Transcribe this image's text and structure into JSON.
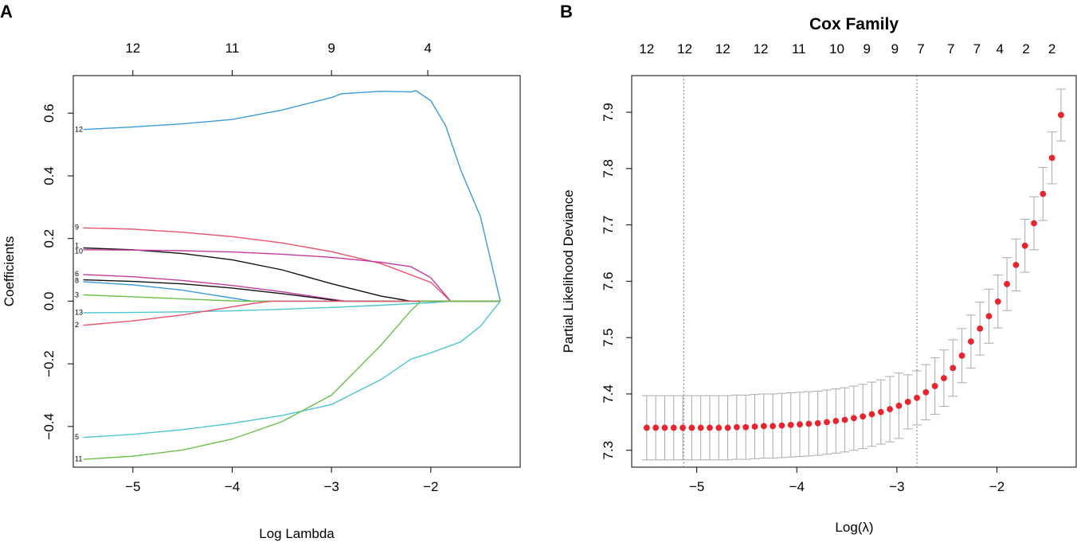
{
  "panels": {
    "a": {
      "letter": "A"
    },
    "b": {
      "letter": "B"
    }
  },
  "chart_data": [
    {
      "type": "line",
      "panel": "A",
      "title": "",
      "xlabel": "Log Lambda",
      "ylabel": "Coefficients",
      "xlim": [
        -5.6,
        -1.1
      ],
      "ylim": [
        -0.53,
        0.72
      ],
      "x_ticks": [
        -5,
        -4,
        -3,
        -2
      ],
      "y_ticks": [
        -0.4,
        -0.2,
        0.0,
        0.2,
        0.4,
        0.6
      ],
      "x_tick_labels": [
        "−5",
        "−4",
        "−3",
        "−2"
      ],
      "y_tick_labels": [
        "−0.4",
        "−0.2",
        "0.0",
        "0.2",
        "0.4",
        "0.6"
      ],
      "top_axis": {
        "positions": [
          -5,
          -4,
          -3,
          -2.03
        ],
        "labels": [
          "12",
          "11",
          "9",
          "4"
        ]
      },
      "series": [
        {
          "name": "12",
          "color": "#3a9bd9",
          "x": [
            -5.5,
            -5.0,
            -4.5,
            -4.0,
            -3.5,
            -3.0,
            -2.9,
            -2.5,
            -2.2,
            -2.15,
            -2.0,
            -1.85,
            -1.7,
            -1.5,
            -1.3
          ],
          "y": [
            0.548,
            0.556,
            0.566,
            0.58,
            0.61,
            0.65,
            0.662,
            0.67,
            0.668,
            0.672,
            0.64,
            0.56,
            0.42,
            0.27,
            0.0
          ]
        },
        {
          "name": "9",
          "color": "#e8536b",
          "x": [
            -5.5,
            -5.0,
            -4.5,
            -4.0,
            -3.5,
            -3.0,
            -2.5,
            -2.0,
            -1.8,
            -1.7,
            -1.3
          ],
          "y": [
            0.234,
            0.23,
            0.22,
            0.206,
            0.186,
            0.158,
            0.12,
            0.06,
            0.0,
            0.0,
            0.0
          ]
        },
        {
          "name": "1",
          "color": "#111111",
          "x": [
            -5.5,
            -5.0,
            -4.5,
            -4.0,
            -3.5,
            -3.0,
            -2.5,
            -2.2,
            -2.15,
            -1.3
          ],
          "y": [
            0.17,
            0.164,
            0.152,
            0.132,
            0.1,
            0.056,
            0.016,
            0.0,
            0.0,
            0.0
          ]
        },
        {
          "name": "10",
          "color": "#c23b9e",
          "x": [
            -5.5,
            -5.0,
            -4.5,
            -4.0,
            -3.5,
            -3.0,
            -2.5,
            -2.2,
            -2.0,
            -1.8,
            -1.7,
            -1.3
          ],
          "y": [
            0.164,
            0.163,
            0.161,
            0.157,
            0.15,
            0.14,
            0.124,
            0.11,
            0.075,
            0.0,
            0.0,
            0.0
          ]
        },
        {
          "name": "6",
          "color": "#c23b9e",
          "x": [
            -5.5,
            -5.0,
            -4.5,
            -4.0,
            -3.5,
            -3.0,
            -2.85,
            -1.3
          ],
          "y": [
            0.085,
            0.078,
            0.066,
            0.05,
            0.03,
            0.006,
            0.0,
            0.0
          ]
        },
        {
          "name": "8",
          "color": "#111111",
          "x": [
            -5.5,
            -5.0,
            -4.5,
            -4.0,
            -3.5,
            -3.0,
            -2.9,
            -1.3
          ],
          "y": [
            0.068,
            0.063,
            0.055,
            0.042,
            0.024,
            0.004,
            0.0,
            0.0
          ]
        },
        {
          "name": "4",
          "color": "#3a9bd9",
          "x": [
            -5.5,
            -5.0,
            -4.5,
            -4.0,
            -3.8,
            -1.3
          ],
          "y": [
            0.062,
            0.052,
            0.035,
            0.01,
            0.0,
            0.0
          ]
        },
        {
          "name": "3",
          "color": "#6cbf4a",
          "x": [
            -5.5,
            -5.0,
            -4.5,
            -4.0,
            -3.9,
            -1.3
          ],
          "y": [
            0.02,
            0.014,
            0.007,
            0.001,
            0.0,
            0.0
          ]
        },
        {
          "name": "13",
          "color": "#4cc6cf",
          "x": [
            -5.5,
            -5.0,
            -4.5,
            -4.0,
            -3.5,
            -3.0,
            -2.5,
            -2.0,
            -1.8,
            -1.3
          ],
          "y": [
            -0.037,
            -0.036,
            -0.034,
            -0.031,
            -0.026,
            -0.02,
            -0.013,
            -0.005,
            0.0,
            0.0
          ]
        },
        {
          "name": "2",
          "color": "#e8536b",
          "x": [
            -5.5,
            -5.0,
            -4.5,
            -4.0,
            -3.8,
            -3.6,
            -1.3
          ],
          "y": [
            -0.077,
            -0.063,
            -0.044,
            -0.018,
            -0.008,
            0.0,
            0.0
          ]
        },
        {
          "name": "5",
          "color": "#4cc6cf",
          "x": [
            -5.5,
            -5.0,
            -4.5,
            -4.0,
            -3.5,
            -3.0,
            -2.5,
            -2.2,
            -2.0,
            -1.7,
            -1.5,
            -1.3
          ],
          "y": [
            -0.435,
            -0.425,
            -0.41,
            -0.39,
            -0.365,
            -0.33,
            -0.25,
            -0.185,
            -0.165,
            -0.13,
            -0.08,
            0.0
          ]
        },
        {
          "name": "11",
          "color": "#6cbf4a",
          "x": [
            -5.5,
            -5.0,
            -4.5,
            -4.0,
            -3.5,
            -3.0,
            -2.5,
            -2.2,
            -2.15,
            -2.1,
            -1.3
          ],
          "y": [
            -0.505,
            -0.495,
            -0.475,
            -0.44,
            -0.385,
            -0.3,
            -0.14,
            -0.03,
            -0.015,
            0.0,
            0.0
          ]
        }
      ],
      "annotations": [
        {
          "text": "12",
          "y": 0.548
        },
        {
          "text": "9",
          "y": 0.236
        },
        {
          "text": "1",
          "y": 0.178
        },
        {
          "text": "10",
          "y": 0.16
        },
        {
          "text": "6",
          "y": 0.088
        },
        {
          "text": "8",
          "y": 0.066
        },
        {
          "text": "3",
          "y": 0.02
        },
        {
          "text": "13",
          "y": -0.036
        },
        {
          "text": "2",
          "y": -0.075
        },
        {
          "text": "5",
          "y": -0.433
        },
        {
          "text": "11",
          "y": -0.503
        }
      ]
    },
    {
      "type": "scatter",
      "panel": "B",
      "title": "Cox Family",
      "xlabel": "Log(λ)",
      "ylabel": "Partial Likelihood Deviance",
      "xlim": [
        -5.65,
        -1.2
      ],
      "ylim": [
        7.27,
        7.965
      ],
      "x_ticks": [
        -5,
        -4,
        -3,
        -2
      ],
      "y_ticks": [
        7.3,
        7.4,
        7.5,
        7.6,
        7.7,
        7.8,
        7.9
      ],
      "x_tick_labels": [
        "−5",
        "−4",
        "−3",
        "−2"
      ],
      "y_tick_labels": [
        "7.3",
        "7.4",
        "7.5",
        "7.6",
        "7.7",
        "7.8",
        "7.9"
      ],
      "top_axis": {
        "positions": [
          -5.5,
          -5.12,
          -4.74,
          -4.36,
          -3.98,
          -3.6,
          -3.3,
          -3.02,
          -2.76,
          -2.46,
          -2.2,
          -1.97,
          -1.71,
          -1.45
        ],
        "labels": [
          "12",
          "12",
          "12",
          "12",
          "11",
          "10",
          "9",
          "9",
          "7",
          "7",
          "7",
          "4",
          "2",
          "2"
        ]
      },
      "vlines": [
        -5.13,
        -2.8
      ],
      "point_color": "#e8252e",
      "errorbar_color": "#aaaaaa",
      "x": [
        -5.5,
        -5.41,
        -5.32,
        -5.23,
        -5.14,
        -5.05,
        -4.96,
        -4.87,
        -4.78,
        -4.69,
        -4.6,
        -4.51,
        -4.42,
        -4.33,
        -4.24,
        -4.15,
        -4.06,
        -3.97,
        -3.88,
        -3.79,
        -3.7,
        -3.61,
        -3.52,
        -3.43,
        -3.34,
        -3.25,
        -3.16,
        -3.07,
        -2.98,
        -2.89,
        -2.8,
        -2.71,
        -2.62,
        -2.53,
        -2.44,
        -2.35,
        -2.26,
        -2.17,
        -2.08,
        -1.99,
        -1.9,
        -1.81,
        -1.72,
        -1.63,
        -1.54,
        -1.45,
        -1.36
      ],
      "y": [
        7.34,
        7.34,
        7.34,
        7.34,
        7.34,
        7.34,
        7.34,
        7.34,
        7.34,
        7.34,
        7.341,
        7.341,
        7.342,
        7.343,
        7.343,
        7.344,
        7.345,
        7.346,
        7.347,
        7.348,
        7.35,
        7.352,
        7.354,
        7.357,
        7.36,
        7.364,
        7.368,
        7.373,
        7.379,
        7.386,
        7.393,
        7.403,
        7.414,
        7.428,
        7.446,
        7.468,
        7.493,
        7.516,
        7.538,
        7.564,
        7.595,
        7.629,
        7.663,
        7.703,
        7.755,
        7.819,
        7.895
      ],
      "err": [
        0.057,
        0.057,
        0.057,
        0.057,
        0.057,
        0.057,
        0.057,
        0.057,
        0.057,
        0.057,
        0.057,
        0.057,
        0.057,
        0.057,
        0.057,
        0.057,
        0.057,
        0.057,
        0.057,
        0.057,
        0.057,
        0.057,
        0.057,
        0.057,
        0.057,
        0.057,
        0.057,
        0.058,
        0.058,
        0.048,
        0.048,
        0.049,
        0.05,
        0.05,
        0.05,
        0.048,
        0.047,
        0.047,
        0.048,
        0.047,
        0.047,
        0.046,
        0.047,
        0.047,
        0.047,
        0.046,
        0.046
      ]
    }
  ]
}
